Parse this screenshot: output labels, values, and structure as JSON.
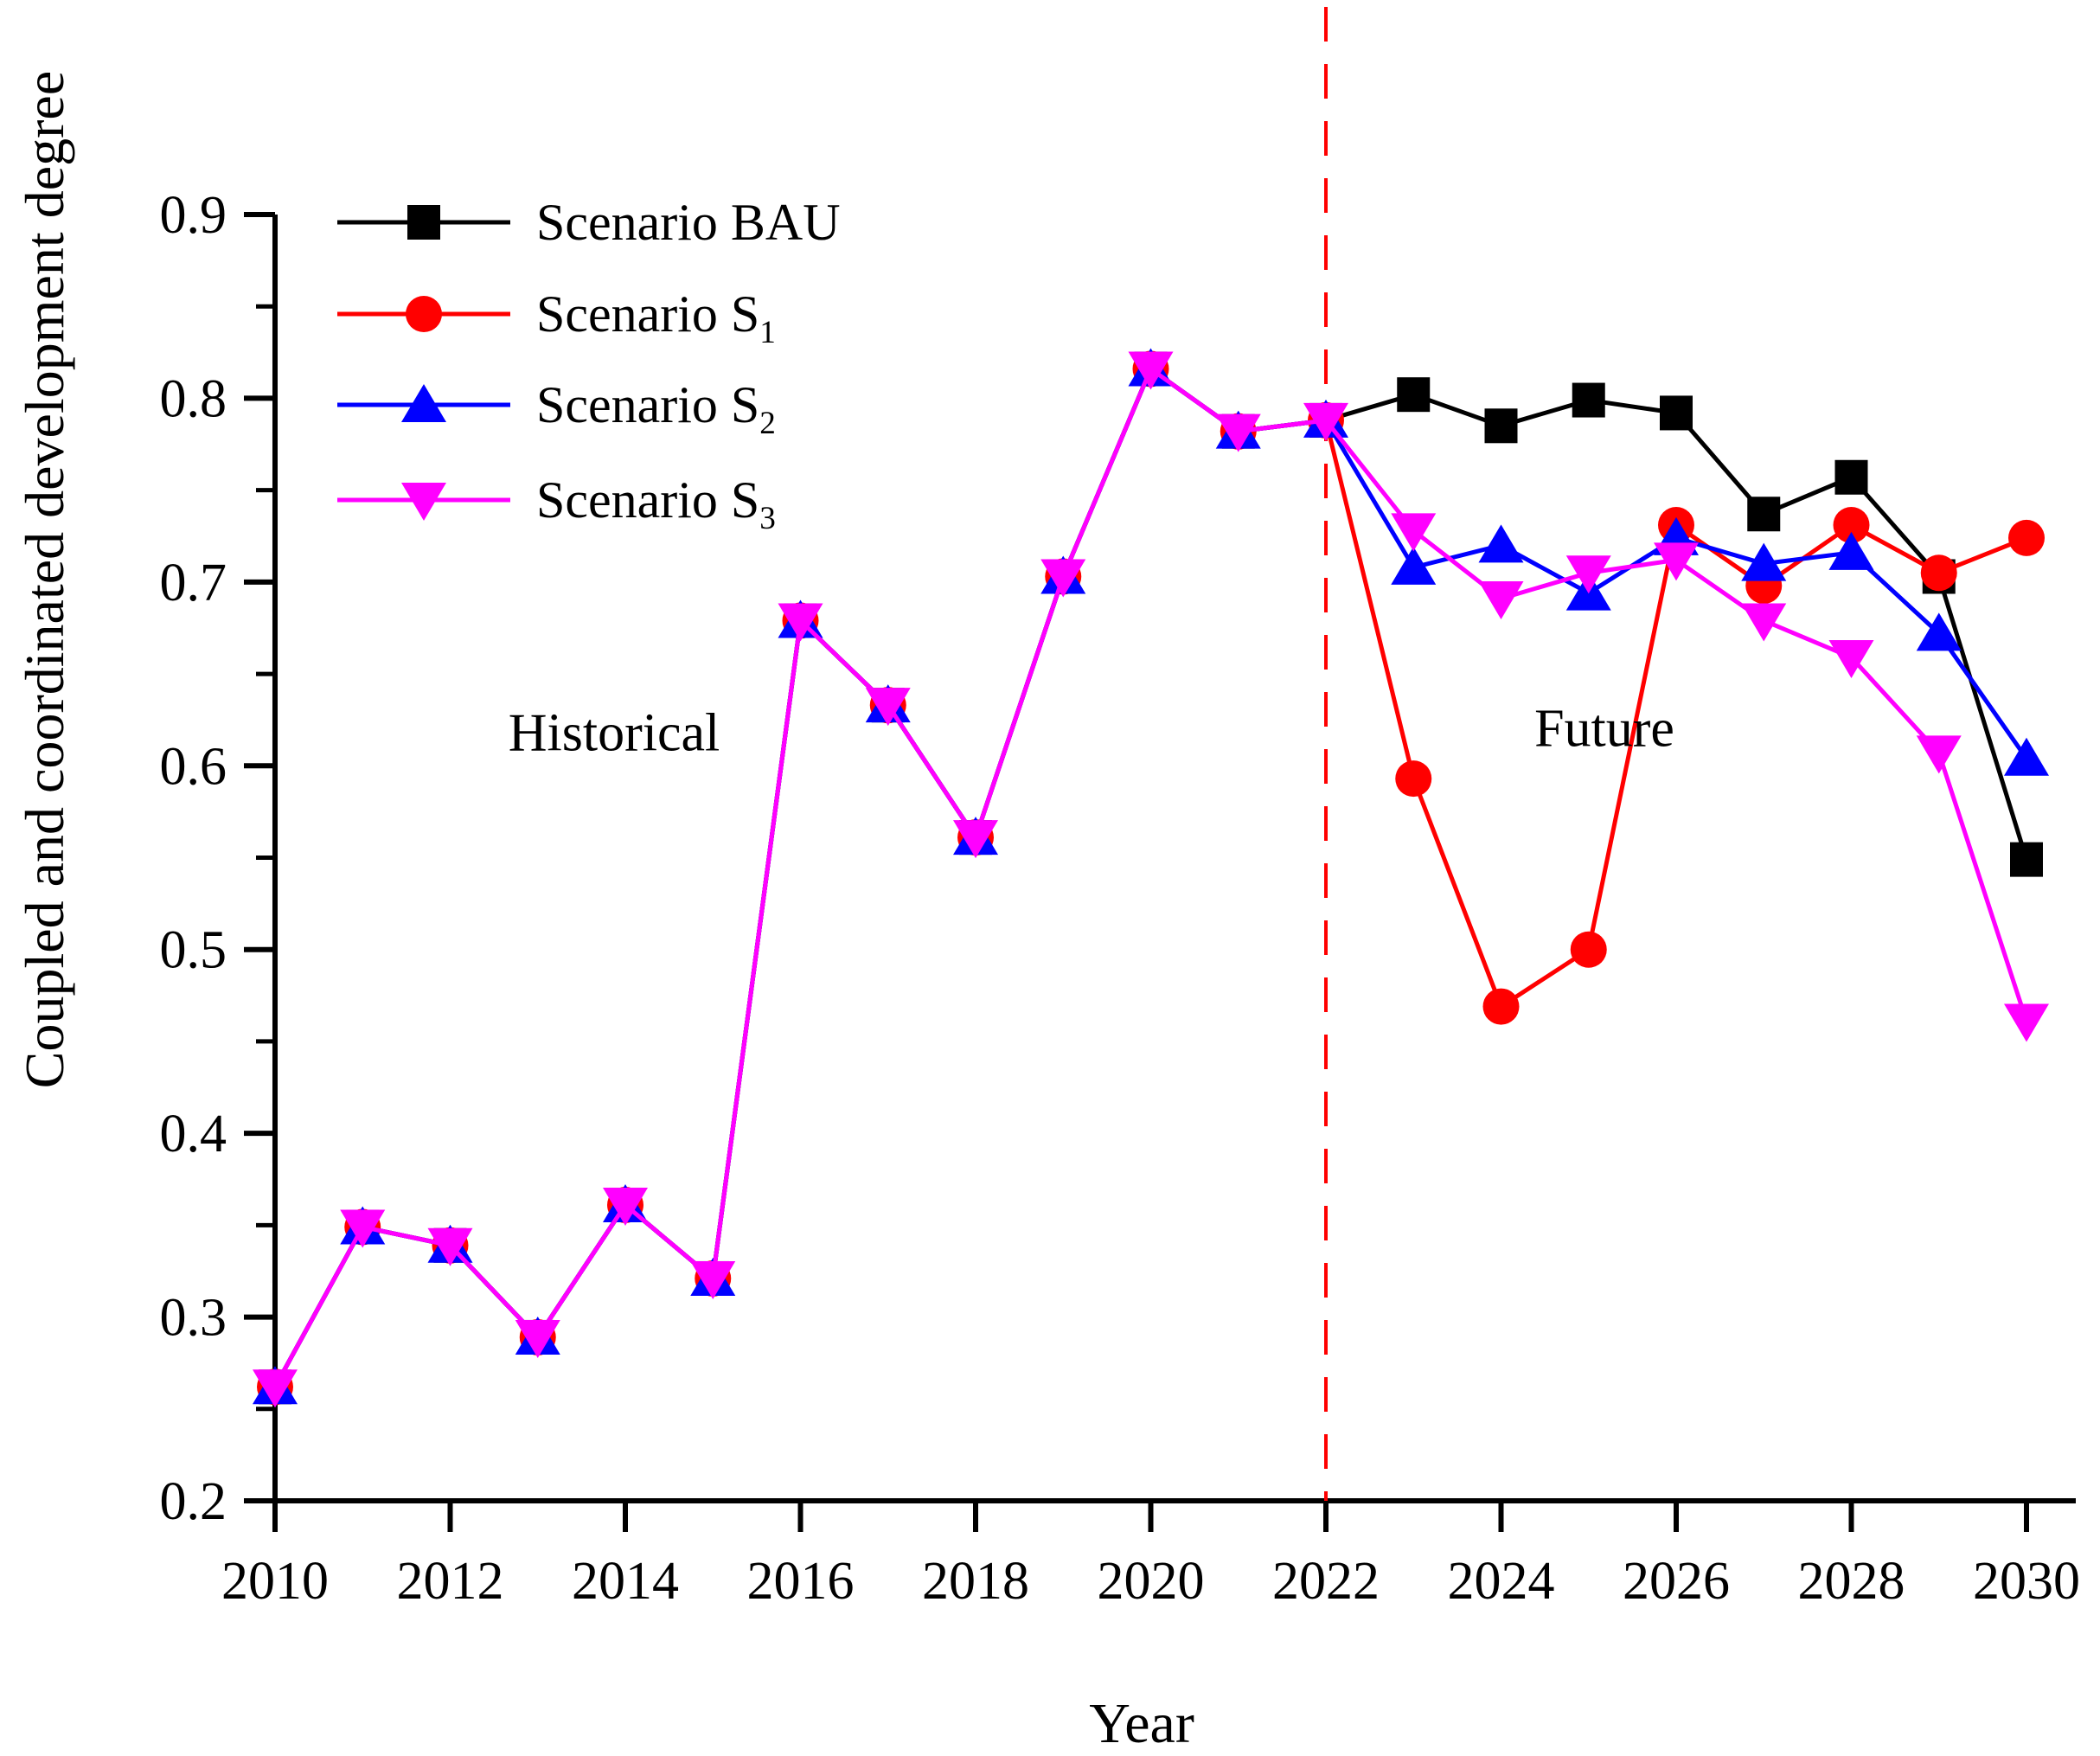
{
  "figure": {
    "y_axis_title": "Coupled and coordinated development degree",
    "x_axis_title": "Year",
    "annotation_historical": "Historical",
    "annotation_future": "Future"
  },
  "legend": {
    "items": [
      {
        "label_base": "Scenario BAU",
        "label_sub": ""
      },
      {
        "label_base": "Scenario S",
        "label_sub": "1"
      },
      {
        "label_base": "Scenario S",
        "label_sub": "2"
      },
      {
        "label_base": "Scenario S",
        "label_sub": "3"
      }
    ]
  },
  "chart_data": {
    "type": "line",
    "title": "",
    "xlabel": "Year",
    "ylabel": "Coupled and coordinated development degree",
    "xlim": [
      2010,
      2030
    ],
    "ylim": [
      0.2,
      0.9
    ],
    "grid": false,
    "legend_position": "top-left",
    "x": [
      2010,
      2011,
      2012,
      2013,
      2014,
      2015,
      2016,
      2017,
      2018,
      2019,
      2020,
      2021,
      2022,
      2023,
      2024,
      2025,
      2026,
      2027,
      2028,
      2029,
      2030
    ],
    "x_ticks": [
      2010,
      2012,
      2014,
      2016,
      2018,
      2020,
      2022,
      2024,
      2026,
      2028,
      2030
    ],
    "x_tick_labels": [
      "2010",
      "2012",
      "2014",
      "2016",
      "2018",
      "2020",
      "2022",
      "2024",
      "2026",
      "2028",
      "2030"
    ],
    "y_ticks": [
      0.9,
      0.8,
      0.7,
      0.6,
      0.5,
      0.4,
      0.3,
      0.2
    ],
    "y_tick_labels": [
      "0.9",
      "0.8",
      "0.7",
      "0.6",
      "0.5",
      "0.4",
      "0.3",
      "0.2"
    ],
    "y_minor_ticks": [
      0.85,
      0.75,
      0.65,
      0.55,
      0.45,
      0.35,
      0.25
    ],
    "divider": {
      "x": 2022,
      "color": "#ff0000",
      "style": "dashed"
    },
    "colors": {
      "axis": "#000000",
      "bau": "#000000",
      "s1": "#ff0000",
      "s2": "#0000ff",
      "s3": "#ff00ff"
    },
    "series": [
      {
        "name": "Scenario BAU",
        "marker": "square",
        "color": "#000000",
        "values": [
          0.262,
          0.349,
          0.339,
          0.289,
          0.361,
          0.321,
          0.679,
          0.633,
          0.561,
          0.703,
          0.816,
          0.782,
          0.788,
          0.802,
          0.785,
          0.799,
          0.792,
          0.737,
          0.757,
          0.703,
          0.549
        ]
      },
      {
        "name": "Scenario S1",
        "marker": "circle",
        "color": "#ff0000",
        "values": [
          0.262,
          0.349,
          0.339,
          0.289,
          0.361,
          0.321,
          0.679,
          0.633,
          0.561,
          0.703,
          0.816,
          0.782,
          0.788,
          0.593,
          0.469,
          0.5,
          0.731,
          0.698,
          0.731,
          0.705,
          0.724
        ]
      },
      {
        "name": "Scenario S2",
        "marker": "triangle-up",
        "color": "#0000ff",
        "values": [
          0.262,
          0.349,
          0.339,
          0.289,
          0.361,
          0.321,
          0.679,
          0.633,
          0.561,
          0.703,
          0.816,
          0.782,
          0.788,
          0.708,
          0.72,
          0.694,
          0.724,
          0.71,
          0.716,
          0.672,
          0.604
        ]
      },
      {
        "name": "Scenario S3",
        "marker": "triangle-down",
        "color": "#ff00ff",
        "values": [
          0.262,
          0.349,
          0.339,
          0.289,
          0.361,
          0.321,
          0.679,
          0.633,
          0.561,
          0.703,
          0.816,
          0.782,
          0.788,
          0.728,
          0.691,
          0.705,
          0.712,
          0.679,
          0.659,
          0.607,
          0.461
        ]
      }
    ]
  }
}
